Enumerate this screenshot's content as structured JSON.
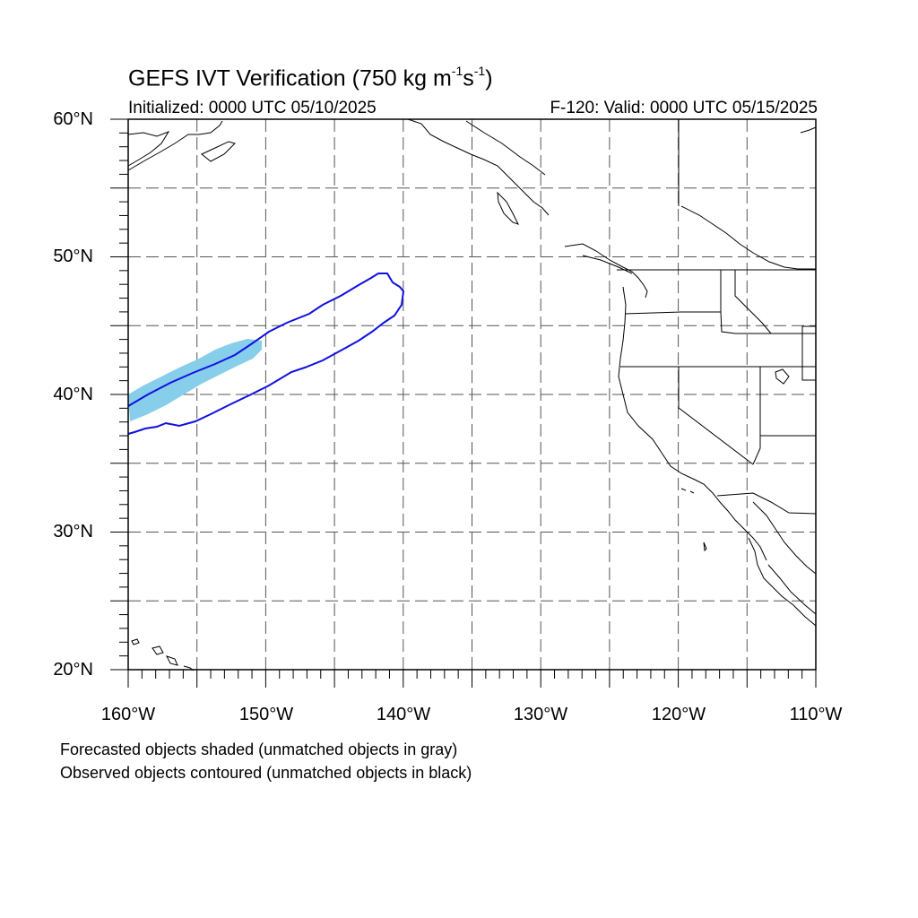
{
  "map": {
    "title_prefix": "GEFS IVT Verification (750 kg m",
    "title_exp1": "-1",
    "title_mid": "s",
    "title_exp2": "-1",
    "title_suffix": ")",
    "initialized": "Initialized: 0000 UTC 05/10/2025",
    "valid": "F-120: Valid: 0000 UTC 05/15/2025",
    "lat_range": [
      20,
      60
    ],
    "lon_range": [
      -160,
      -110
    ],
    "lat_labels": [
      "60°N",
      "50°N",
      "40°N",
      "30°N",
      "20°N"
    ],
    "lon_labels": [
      "160°W",
      "150°W",
      "140°W",
      "130°W",
      "120°W",
      "110°W"
    ],
    "grid": true,
    "forecast_fill_color": "#87ceeb",
    "observed_contour_color": "#1010e0",
    "notes": {
      "line1": "Forecasted objects shaded (unmatched objects in gray)",
      "line2": "Observed objects contoured (unmatched objects in black)"
    }
  }
}
